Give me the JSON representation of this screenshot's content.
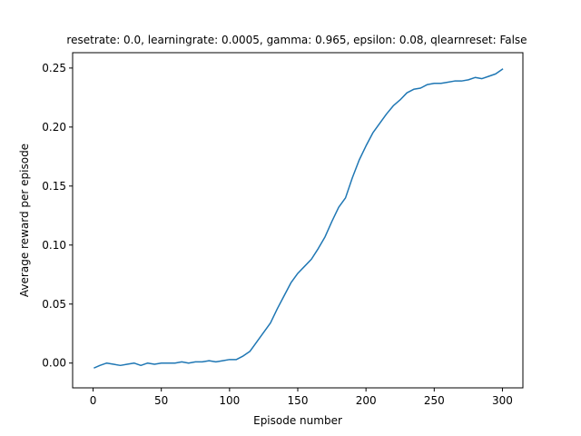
{
  "chart_data": {
    "type": "line",
    "title": "resetrate: 0.0, learningrate: 0.0005, gamma: 0.965, epsilon: 0.08, qlearnreset: False",
    "xlabel": "Episode number",
    "ylabel": "Average reward per episode",
    "xlim": [
      -15,
      315
    ],
    "ylim": [
      -0.021,
      0.263
    ],
    "xticks": [
      0,
      50,
      100,
      150,
      200,
      250,
      300
    ],
    "yticks": [
      0.0,
      0.05,
      0.1,
      0.15,
      0.2,
      0.25
    ],
    "ytick_labels": [
      "0.00",
      "0.05",
      "0.10",
      "0.15",
      "0.20",
      "0.25"
    ],
    "grid": false,
    "color": "#1f77b4",
    "series": [
      {
        "x": [
          1,
          5,
          10,
          15,
          20,
          25,
          30,
          35,
          40,
          45,
          50,
          55,
          60,
          65,
          70,
          75,
          80,
          85,
          90,
          95,
          100,
          105,
          110,
          115,
          120,
          125,
          130,
          135,
          140,
          145,
          150,
          155,
          160,
          165,
          170,
          175,
          180,
          185,
          190,
          195,
          200,
          205,
          210,
          215,
          220,
          225,
          230,
          235,
          240,
          245,
          250,
          255,
          260,
          265,
          270,
          275,
          280,
          285,
          290,
          295,
          300
        ],
        "y": [
          -0.004,
          -0.002,
          0.0,
          -0.001,
          -0.002,
          -0.001,
          0.0,
          -0.002,
          0.0,
          -0.001,
          0.0,
          0.0,
          0.0,
          0.001,
          0.0,
          0.001,
          0.001,
          0.002,
          0.001,
          0.002,
          0.003,
          0.003,
          0.006,
          0.01,
          0.018,
          0.026,
          0.034,
          0.046,
          0.057,
          0.068,
          0.076,
          0.082,
          0.088,
          0.097,
          0.107,
          0.12,
          0.132,
          0.14,
          0.157,
          0.172,
          0.184,
          0.195,
          0.203,
          0.211,
          0.218,
          0.223,
          0.229,
          0.232,
          0.233,
          0.236,
          0.237,
          0.237,
          0.238,
          0.239,
          0.239,
          0.24,
          0.242,
          0.241,
          0.243,
          0.245,
          0.249
        ]
      }
    ]
  }
}
